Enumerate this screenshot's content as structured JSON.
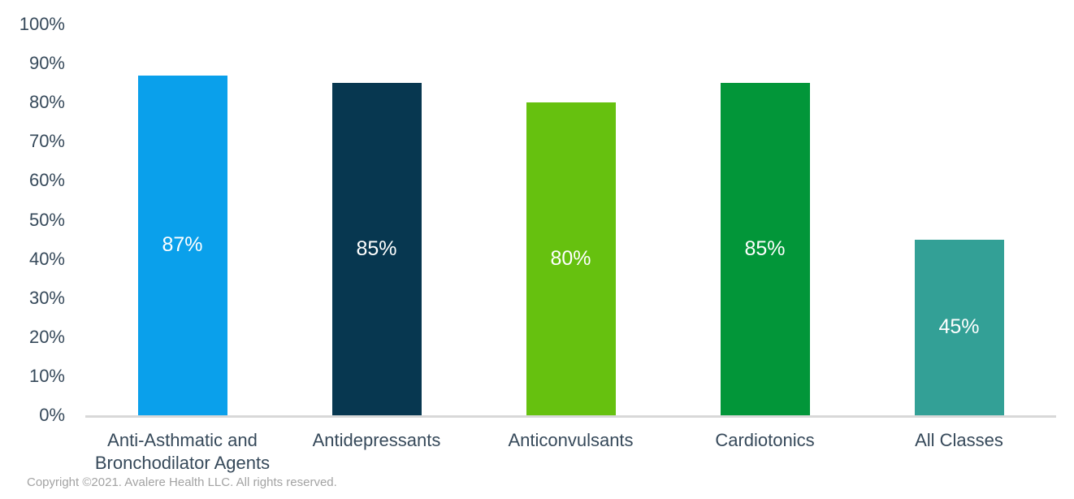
{
  "chart_data": {
    "type": "bar",
    "categories": [
      "Anti-Asthmatic and Bronchodilator Agents",
      "Antidepressants",
      "Anticonvulsants",
      "Cardiotonics",
      "All Classes"
    ],
    "values": [
      87,
      85,
      80,
      85,
      45
    ],
    "value_labels": [
      "87%",
      "85%",
      "80%",
      "85%",
      "45%"
    ],
    "bar_colors": [
      "#0AA0EB",
      "#073750",
      "#66C10F",
      "#029639",
      "#33A096"
    ],
    "title": "",
    "xlabel": "",
    "ylabel": "",
    "ylim": [
      0,
      100
    ],
    "yticks": [
      0,
      10,
      20,
      30,
      40,
      50,
      60,
      70,
      80,
      90,
      100
    ],
    "ytick_labels": [
      "0%",
      "10%",
      "20%",
      "30%",
      "40%",
      "50%",
      "60%",
      "70%",
      "80%",
      "90%",
      "100%"
    ],
    "grid": false,
    "legend": false,
    "data_labels_position": "center-inside"
  },
  "footer": {
    "copyright": "Copyright ©2021. Avalere Health LLC. All rights reserved."
  },
  "colors": {
    "axis_text": "#36495A",
    "axis_line": "#D8D8D8",
    "data_label_text": "#FFFFFF",
    "copyright_text": "#A3A3A3",
    "background": "#FFFFFF"
  }
}
